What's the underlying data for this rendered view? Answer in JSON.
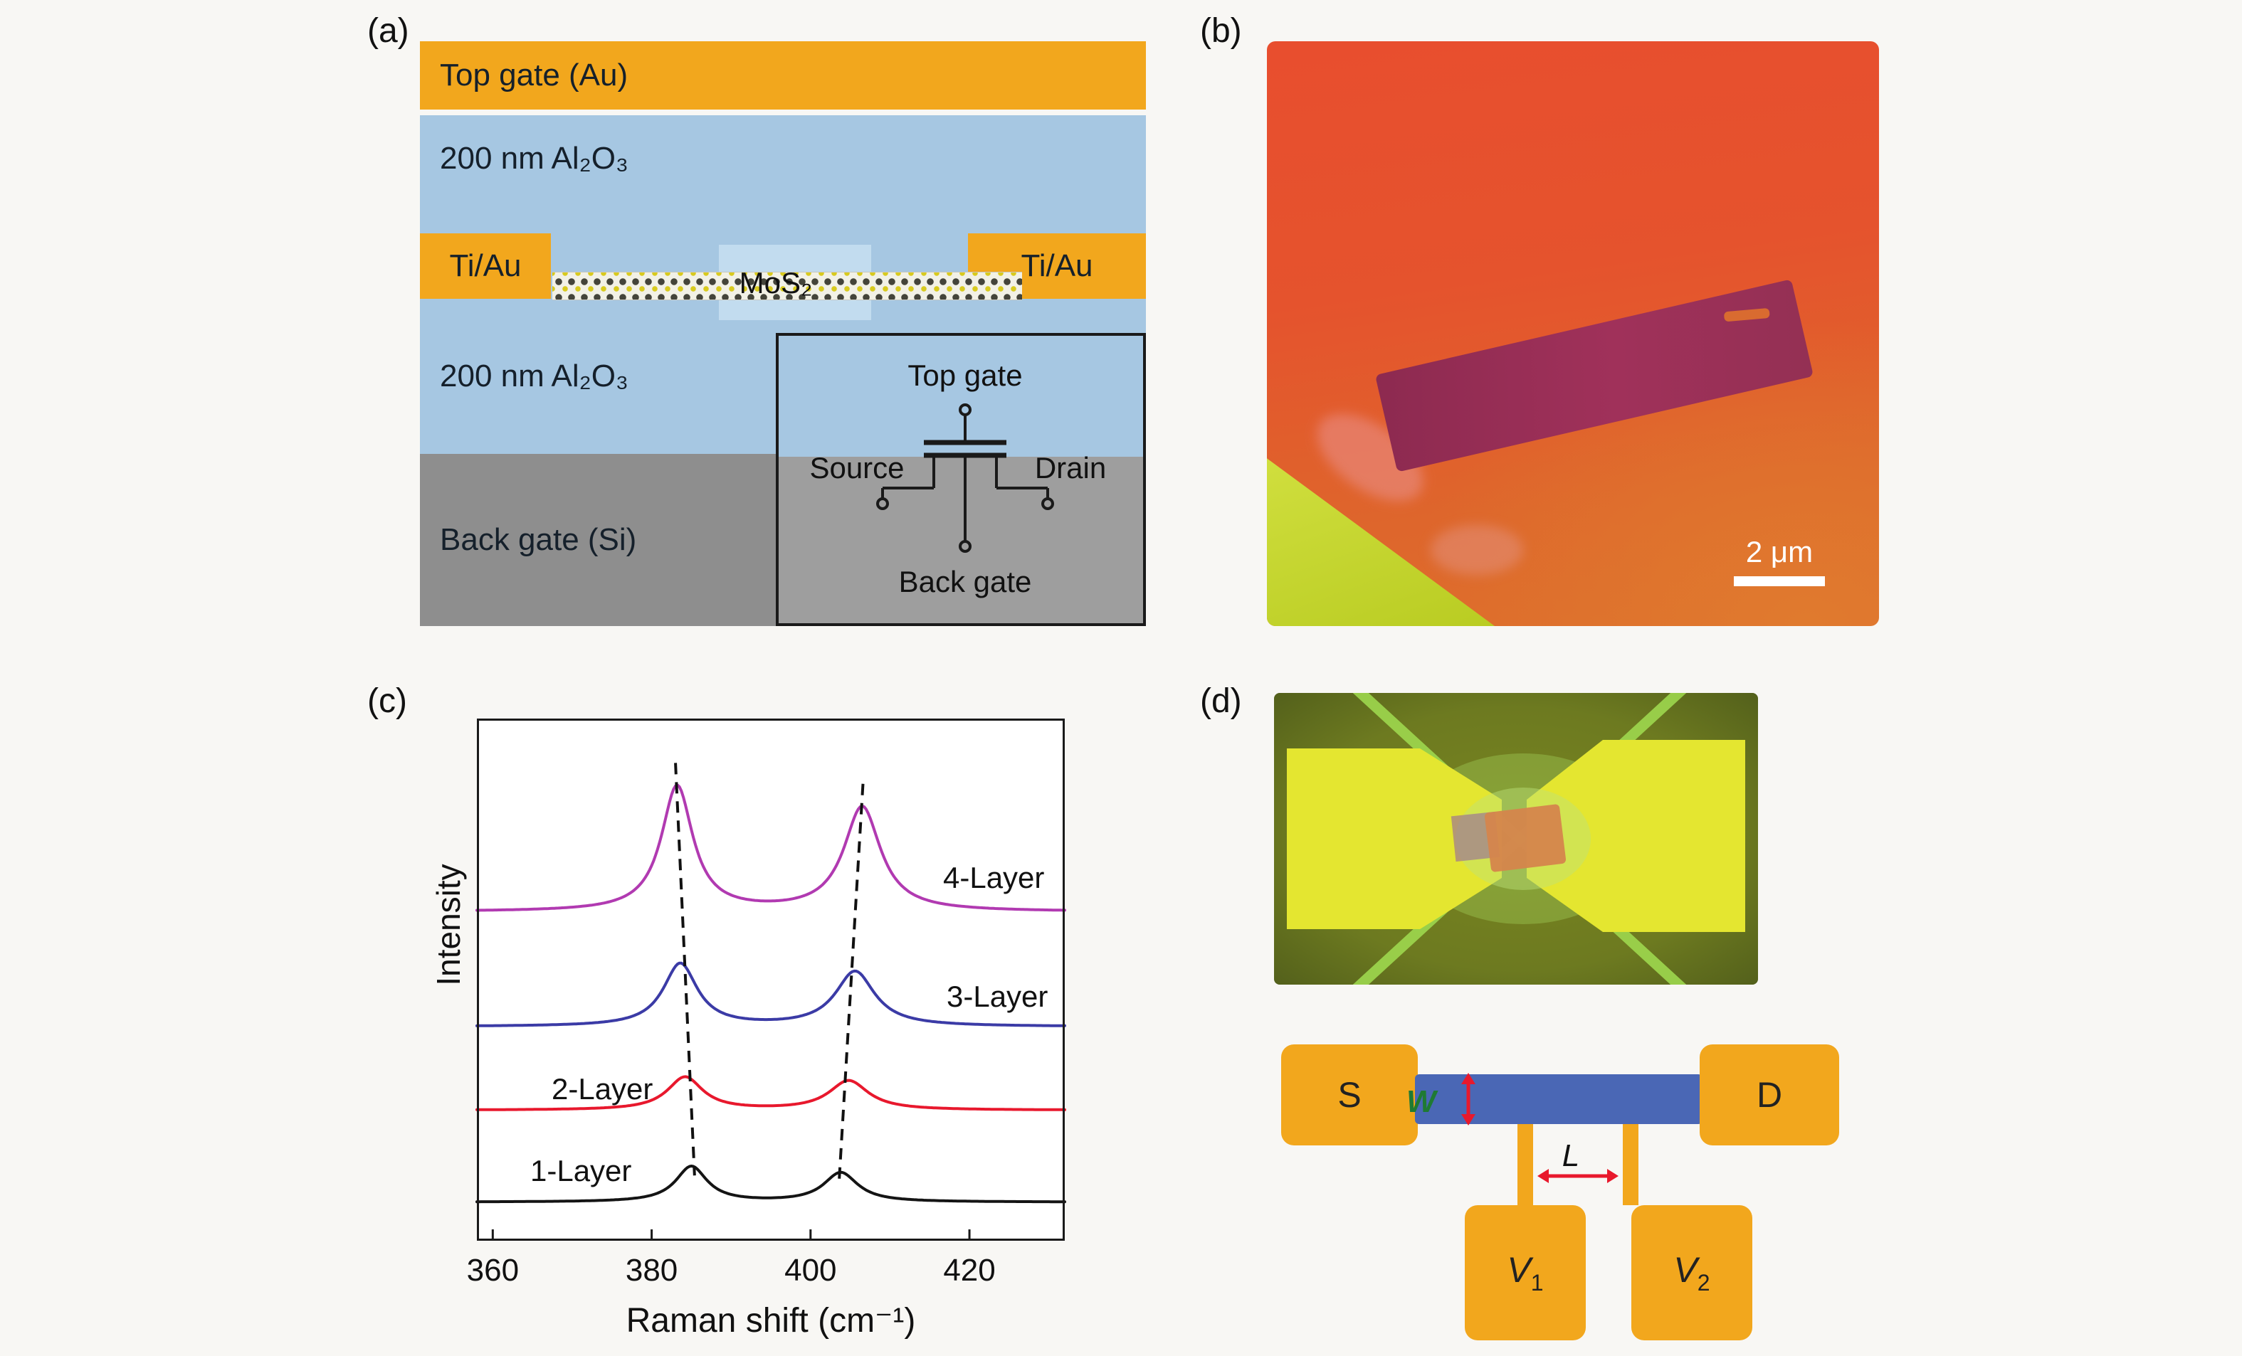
{
  "panels": {
    "a": {
      "label": "(a)",
      "layers": {
        "top_gate": "Top gate (Au)",
        "al2o3_top": "200 nm Al₂O₃",
        "ti_au_left": "Ti/Au",
        "ti_au_right": "Ti/Au",
        "mos2": "MoS₂",
        "al2o3_bottom": "200 nm Al₂O₃",
        "back_gate": "Back gate (Si)"
      },
      "inset": {
        "top_gate": "Top gate",
        "source": "Source",
        "drain": "Drain",
        "back_gate": "Back gate"
      }
    },
    "b": {
      "label": "(b)",
      "scale_bar_label": "2 μm"
    },
    "c": {
      "label": "(c)"
    },
    "d": {
      "label": "(d)",
      "schematic": {
        "source": "S",
        "drain": "D",
        "width_label": "W",
        "length_label": "L",
        "v_label": "V",
        "v1_sub": "1",
        "v2_sub": "2"
      }
    }
  },
  "colors": {
    "gold": "#F2A71D",
    "light_blue": "#A6C7E2",
    "pale_blue": "#C2DCEF",
    "gray_si": "#8E8E8E",
    "inset_gray": "#9E9E9E",
    "channel_blue": "#4A67B5",
    "arrow_red": "#E8192C",
    "w_label_green": "#1F7A33",
    "flake_magenta": "#A0315A",
    "micrograph_orange": "#E2592D",
    "device_olive": "#6D7A20",
    "electrode_yellow": "#E4E630"
  },
  "chart_data": {
    "type": "line",
    "title": "",
    "xlabel": "Raman shift (cm⁻¹)",
    "ylabel": "Intensity",
    "xlim": [
      358,
      432
    ],
    "xticks": [
      360,
      380,
      400,
      420
    ],
    "grid": false,
    "legend_position": "inline-labels",
    "series": [
      {
        "name": "1-Layer",
        "color": "#141414",
        "baseline_offset": 0.074,
        "peaks": [
          {
            "center": 385.0,
            "amplitude": 0.068,
            "hwhm": 2.4
          },
          {
            "center": 403.8,
            "amplitude": 0.056,
            "hwhm": 2.6
          }
        ]
      },
      {
        "name": "2-Layer",
        "color": "#E8182D",
        "baseline_offset": 0.25,
        "peaks": [
          {
            "center": 384.2,
            "amplitude": 0.063,
            "hwhm": 2.7
          },
          {
            "center": 404.8,
            "amplitude": 0.056,
            "hwhm": 3.0
          }
        ]
      },
      {
        "name": "3-Layer",
        "color": "#3B3BA6",
        "baseline_offset": 0.41,
        "peaks": [
          {
            "center": 383.6,
            "amplitude": 0.12,
            "hwhm": 2.6
          },
          {
            "center": 405.6,
            "amplitude": 0.105,
            "hwhm": 3.0
          }
        ]
      },
      {
        "name": "4-Layer",
        "color": "#B13AB1",
        "baseline_offset": 0.63,
        "peaks": [
          {
            "center": 383.2,
            "amplitude": 0.24,
            "hwhm": 2.4
          },
          {
            "center": 406.5,
            "amplitude": 0.2,
            "hwhm": 2.8
          }
        ]
      }
    ],
    "peak_guides": [
      {
        "x_top": 383.0,
        "f_top": 0.915,
        "x_bottom": 385.4,
        "f_bottom": 0.125
      },
      {
        "x_top": 406.6,
        "f_top": 0.875,
        "x_bottom": 403.6,
        "f_bottom": 0.115
      }
    ]
  }
}
